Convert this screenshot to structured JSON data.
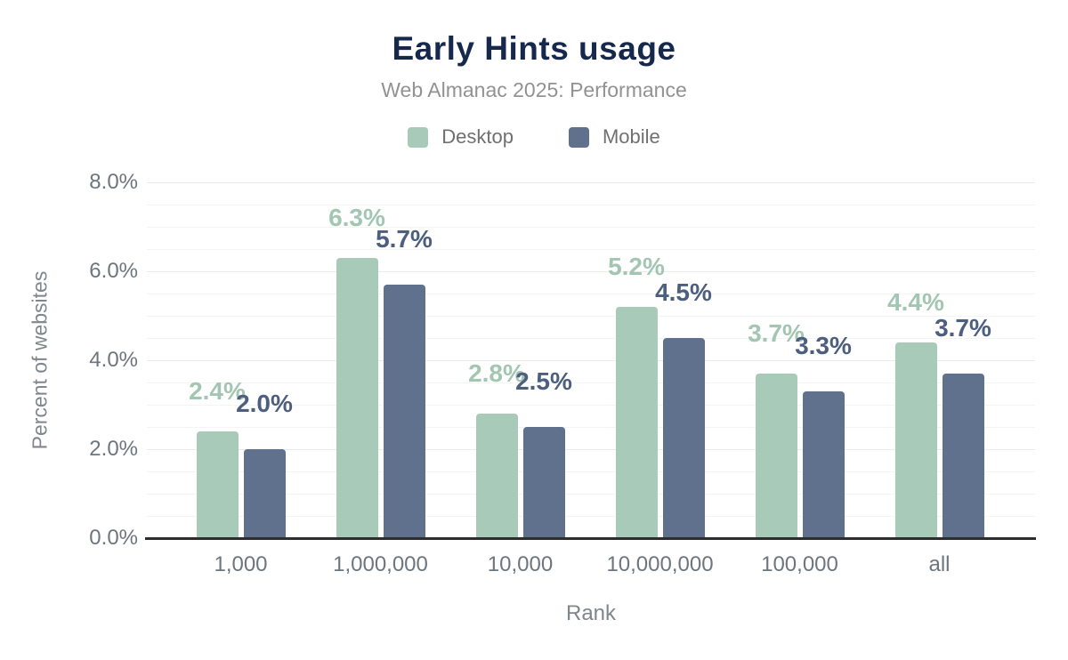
{
  "chart_data": {
    "type": "bar",
    "title": "Early Hints usage",
    "subtitle": "Web Almanac 2025: Performance",
    "categories": [
      "1,000",
      "1,000,000",
      "10,000",
      "10,000,000",
      "100,000",
      "all"
    ],
    "series": [
      {
        "name": "Desktop",
        "values": [
          2.4,
          6.3,
          2.8,
          5.2,
          3.7,
          4.4
        ],
        "labels": [
          "2.4%",
          "6.3%",
          "2.8%",
          "5.2%",
          "3.7%",
          "4.4%"
        ],
        "color": "#a8cab8",
        "label_color": "#a3c6b3"
      },
      {
        "name": "Mobile",
        "values": [
          2.0,
          5.7,
          2.5,
          4.5,
          3.3,
          3.7
        ],
        "labels": [
          "2.0%",
          "5.7%",
          "2.5%",
          "4.5%",
          "3.3%",
          "3.7%"
        ],
        "color": "#5f718c",
        "label_color": "#4d5f7e"
      }
    ],
    "xlabel": "Rank",
    "ylabel": "Percent of websites",
    "ylim": [
      0,
      8
    ],
    "yticks": [
      {
        "value": 0,
        "label": "0.0%"
      },
      {
        "value": 2,
        "label": "2.0%"
      },
      {
        "value": 4,
        "label": "4.0%"
      },
      {
        "value": 6,
        "label": "6.0%"
      },
      {
        "value": 8,
        "label": "8.0%"
      }
    ],
    "minor_grid_step": 0.5,
    "grid": "horizontal",
    "legend_position": "top",
    "data_labels": true
  },
  "colors": {
    "title": "#16294d",
    "subtitle": "#929292",
    "axis_text": "#6d767d",
    "axis_line": "#2d2d2d",
    "gridline_major": "#ebebeb",
    "gridline_minor": "#f4f4f4",
    "background": "#ffffff"
  }
}
